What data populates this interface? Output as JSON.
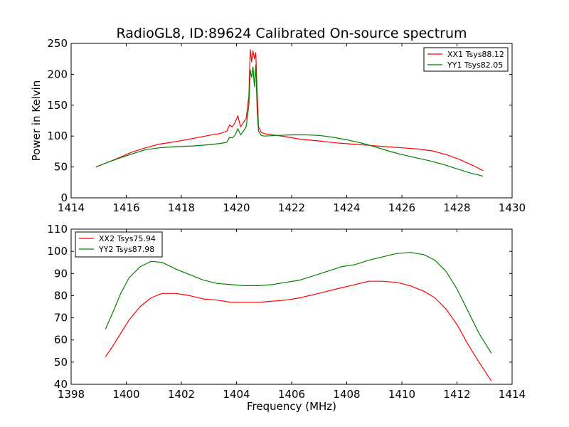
{
  "figure": {
    "title": "RadioGL8, ID:89624 Calibrated On-source spectrum"
  },
  "chart_data": [
    {
      "type": "line",
      "title": "RadioGL8, ID:89624 Calibrated On-source spectrum",
      "xlabel": "",
      "ylabel": "Power in Kelvin",
      "xlim": [
        1414,
        1430
      ],
      "ylim": [
        0,
        250
      ],
      "xticks": [
        1414,
        1416,
        1418,
        1420,
        1422,
        1424,
        1426,
        1428,
        1430
      ],
      "yticks": [
        0,
        50,
        100,
        150,
        200,
        250
      ],
      "grid": false,
      "legend_position": "top-right",
      "series": [
        {
          "name": "XX1 Tsys88.12",
          "color": "#ff0000",
          "x": [
            1414.9,
            1415.3,
            1415.8,
            1416.2,
            1416.7,
            1417.2,
            1417.8,
            1418.4,
            1419.0,
            1419.4,
            1419.65,
            1419.75,
            1419.85,
            1419.95,
            1420.05,
            1420.15,
            1420.25,
            1420.35,
            1420.45,
            1420.5,
            1420.55,
            1420.6,
            1420.65,
            1420.7,
            1420.75,
            1420.8,
            1420.9,
            1421.0,
            1421.3,
            1421.8,
            1422.3,
            1423.0,
            1423.6,
            1424.2,
            1424.8,
            1425.4,
            1426.0,
            1426.6,
            1427.1,
            1427.6,
            1428.1,
            1428.6,
            1428.95
          ],
          "y": [
            50,
            57,
            66,
            74,
            81,
            87,
            91,
            96,
            101,
            104,
            108,
            118,
            115,
            122,
            133,
            115,
            122,
            128,
            165,
            240,
            220,
            238,
            225,
            235,
            170,
            115,
            106,
            104,
            102,
            99,
            95,
            92,
            89,
            87,
            85,
            83,
            81,
            79,
            76,
            70,
            62,
            52,
            44
          ]
        },
        {
          "name": "YY1 Tsys82.05",
          "color": "#008000",
          "x": [
            1414.9,
            1415.3,
            1415.8,
            1416.2,
            1416.7,
            1417.2,
            1417.8,
            1418.4,
            1419.0,
            1419.4,
            1419.65,
            1419.75,
            1419.85,
            1419.95,
            1420.05,
            1420.15,
            1420.25,
            1420.35,
            1420.45,
            1420.5,
            1420.55,
            1420.6,
            1420.65,
            1420.7,
            1420.75,
            1420.8,
            1420.9,
            1421.0,
            1421.5,
            1422.0,
            1422.5,
            1423.0,
            1423.5,
            1424.0,
            1424.5,
            1425.0,
            1425.5,
            1426.0,
            1426.5,
            1427.0,
            1427.5,
            1428.0,
            1428.5,
            1428.95
          ],
          "y": [
            50,
            57,
            65,
            71,
            78,
            81,
            83,
            84,
            86,
            88,
            90,
            98,
            97,
            102,
            112,
            102,
            108,
            115,
            150,
            207,
            195,
            212,
            180,
            215,
            140,
            108,
            101,
            100,
            101,
            102,
            102,
            101,
            98,
            94,
            89,
            83,
            76,
            70,
            65,
            60,
            54,
            47,
            40,
            35
          ]
        }
      ]
    },
    {
      "type": "line",
      "title": "",
      "xlabel": "Frequency (MHz)",
      "ylabel": "",
      "xlim": [
        1398,
        1414
      ],
      "ylim": [
        40,
        110
      ],
      "xticks": [
        1398,
        1400,
        1402,
        1404,
        1406,
        1408,
        1410,
        1412,
        1414
      ],
      "yticks": [
        40,
        50,
        60,
        70,
        80,
        90,
        100,
        110
      ],
      "grid": false,
      "legend_position": "top-left",
      "series": [
        {
          "name": "XX2 Tsys75.94",
          "color": "#ff0000",
          "x": [
            1399.25,
            1399.5,
            1399.8,
            1400.1,
            1400.5,
            1400.9,
            1401.3,
            1401.8,
            1402.3,
            1402.8,
            1403.3,
            1403.8,
            1404.3,
            1404.8,
            1405.3,
            1405.8,
            1406.3,
            1406.8,
            1407.3,
            1407.8,
            1408.3,
            1408.8,
            1409.3,
            1409.8,
            1410.3,
            1410.8,
            1411.2,
            1411.6,
            1412.0,
            1412.4,
            1412.8,
            1413.25
          ],
          "y": [
            52.5,
            57,
            63,
            69,
            75,
            79,
            81,
            81,
            80,
            78.5,
            78,
            77,
            77,
            77,
            77.5,
            78,
            79,
            80.5,
            82,
            83.5,
            85,
            86.5,
            86.5,
            86,
            84.5,
            82,
            79,
            74,
            67,
            58,
            50,
            41.5
          ]
        },
        {
          "name": "YY2 Tsys87.98",
          "color": "#008000",
          "x": [
            1399.25,
            1399.5,
            1399.8,
            1400.1,
            1400.5,
            1400.9,
            1401.3,
            1401.8,
            1402.3,
            1402.8,
            1403.3,
            1403.8,
            1404.3,
            1404.8,
            1405.3,
            1405.8,
            1406.3,
            1406.8,
            1407.3,
            1407.8,
            1408.3,
            1408.8,
            1409.3,
            1409.8,
            1410.3,
            1410.8,
            1411.2,
            1411.6,
            1412.0,
            1412.4,
            1412.8,
            1413.25
          ],
          "y": [
            65,
            72,
            81,
            88,
            93,
            95.5,
            95,
            92,
            89.5,
            87,
            85.5,
            85,
            84.5,
            84.5,
            85,
            86,
            87,
            89,
            91,
            93,
            94,
            96,
            97.5,
            99,
            99.5,
            98.5,
            96,
            91,
            83,
            73,
            63,
            54
          ]
        }
      ]
    }
  ]
}
